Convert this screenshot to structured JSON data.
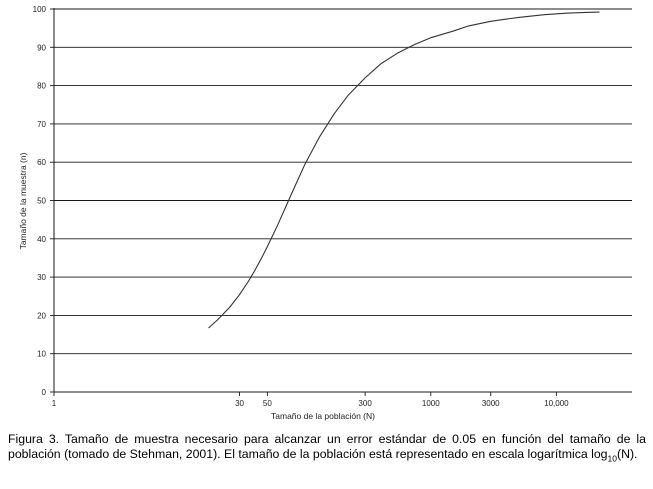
{
  "chart_data": {
    "type": "line",
    "title": "",
    "xlabel": "Tamaño de la población (N)",
    "ylabel": "Tamaño de la muestra (n)",
    "x_scale": "log",
    "xlim": [
      1,
      40000
    ],
    "ylim": [
      0,
      100
    ],
    "x_ticks": [
      1,
      30,
      50,
      300,
      1000,
      3000,
      10000
    ],
    "x_tick_labels": [
      "1",
      "30",
      "50",
      "300",
      "1000",
      "3000",
      "10,000"
    ],
    "y_ticks": [
      0,
      10,
      20,
      30,
      40,
      50,
      60,
      70,
      80,
      90,
      100
    ],
    "y_tick_labels": [
      "0",
      "10",
      "20",
      "30",
      "40",
      "50",
      "60",
      "70",
      "80",
      "90",
      "100"
    ],
    "grid": "horizontal",
    "legend": "none",
    "series": [
      {
        "color": "#333333",
        "points": [
          {
            "x": 17,
            "y": 16.7
          },
          {
            "x": 20,
            "y": 18.8
          },
          {
            "x": 25,
            "y": 22.1
          },
          {
            "x": 30,
            "y": 25.4
          },
          {
            "x": 35,
            "y": 28.7
          },
          {
            "x": 40,
            "y": 31.9
          },
          {
            "x": 45,
            "y": 35.0
          },
          {
            "x": 50,
            "y": 38.0
          },
          {
            "x": 60,
            "y": 43.4
          },
          {
            "x": 70,
            "y": 48.3
          },
          {
            "x": 80,
            "y": 52.6
          },
          {
            "x": 100,
            "y": 59.6
          },
          {
            "x": 130,
            "y": 66.6
          },
          {
            "x": 170,
            "y": 72.6
          },
          {
            "x": 220,
            "y": 77.5
          },
          {
            "x": 300,
            "y": 82.0
          },
          {
            "x": 400,
            "y": 85.7
          },
          {
            "x": 550,
            "y": 88.6
          },
          {
            "x": 750,
            "y": 90.8
          },
          {
            "x": 1000,
            "y": 92.5
          },
          {
            "x": 1500,
            "y": 94.2
          },
          {
            "x": 2000,
            "y": 95.6
          },
          {
            "x": 3000,
            "y": 96.8
          },
          {
            "x": 5000,
            "y": 97.8
          },
          {
            "x": 8000,
            "y": 98.5
          },
          {
            "x": 12000,
            "y": 98.9
          },
          {
            "x": 17000,
            "y": 99.1
          },
          {
            "x": 22000,
            "y": 99.2
          }
        ]
      }
    ]
  },
  "caption": {
    "lead": "Figura 3. Tamaño de muestra necesario para alcanzar un error estándar de 0.05 en función del tamaño de la población (tomado de Stehman, 2001). El tamaño de la población está representado en escala logarítmica log",
    "subscript": "10",
    "tail": "(N)."
  }
}
